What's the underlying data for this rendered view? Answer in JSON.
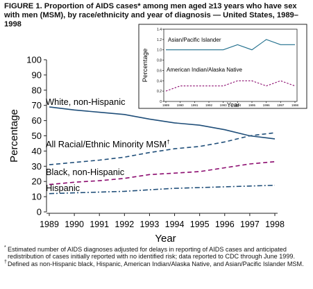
{
  "figure": {
    "title": "FIGURE 1. Proportion of AIDS cases* among men aged ≥13 years who have sex with men (MSM), by race/ethnicity and year of diagnosis — United States, 1989–1998"
  },
  "footnotes": [
    {
      "mark": "*",
      "text": "Estimated number of AIDS diagnoses adjusted for delays in reporting of AIDS cases and anticipated redistribution of cases initially reported with no identified risk; data reported to CDC through June 1999."
    },
    {
      "mark": "†",
      "text": "Defined as non-Hispanic black, Hispanic, American Indian/Alaska Native, and Asian/Pacific Islander MSM."
    }
  ],
  "chart_data": [
    {
      "type": "line",
      "title": "",
      "xlabel": "Year",
      "ylabel": "Percentage",
      "x": [
        1989,
        1990,
        1991,
        1992,
        1993,
        1994,
        1995,
        1996,
        1997,
        1998
      ],
      "xticks": [
        "1989",
        "1990",
        "1991",
        "1992",
        "1993",
        "1994",
        "1995",
        "1996",
        "1997",
        "1998"
      ],
      "ylim": [
        0,
        100
      ],
      "yticks": [
        "0",
        "10",
        "20",
        "30",
        "40",
        "50",
        "60",
        "70",
        "80",
        "90",
        "100"
      ],
      "grid": false,
      "series": [
        {
          "name": "White, non-Hispanic",
          "label": "White, non-Hispanic",
          "color": "#1f4e79",
          "style": "solid",
          "values": [
            69,
            67,
            65.5,
            64,
            61,
            58.5,
            57,
            54,
            50,
            48
          ]
        },
        {
          "name": "All Racial/Ethnic Minority MSM",
          "label": "All Racial/Ethnic Minority MSM",
          "label_mark": "†",
          "color": "#1f4e79",
          "style": "dashed",
          "values": [
            31,
            32.5,
            34,
            36,
            39,
            41.5,
            43,
            46,
            50,
            52
          ]
        },
        {
          "name": "Black, non-Hispanic",
          "label": "Black, non-Hispanic",
          "color": "#8b0a6e",
          "style": "dashed",
          "values": [
            18,
            19.5,
            20.5,
            22,
            24.5,
            25.5,
            26.5,
            29,
            31.5,
            33
          ]
        },
        {
          "name": "Hispanic",
          "label": "Hispanic",
          "color": "#1f4e79",
          "style": "dashdot",
          "values": [
            12,
            12.5,
            13,
            13.5,
            14.5,
            15.5,
            16,
            16.5,
            17,
            17.5
          ]
        }
      ]
    },
    {
      "type": "line",
      "title": "",
      "xlabel": "Year",
      "ylabel": "Percentage",
      "x": [
        1989,
        1990,
        1991,
        1992,
        1993,
        1994,
        1995,
        1996,
        1997,
        1998
      ],
      "xticks": [
        "1989",
        "1990",
        "1991",
        "1992",
        "1993",
        "1994",
        "1995",
        "1996",
        "1997",
        "1998"
      ],
      "ylim": [
        0,
        1.4
      ],
      "yticks": [
        "0",
        "0.2",
        "0.4",
        "0.6",
        "0.8",
        "1.0",
        "1.2",
        "1.4"
      ],
      "grid": false,
      "series": [
        {
          "name": "Asian/Pacific Islander",
          "label": "Asian/Pacific Islander",
          "color": "#1f6e8c",
          "style": "solid",
          "values": [
            1.0,
            1.0,
            1.0,
            1.0,
            1.0,
            1.1,
            1.0,
            1.2,
            1.1,
            1.1
          ]
        },
        {
          "name": "American Indian/Alaska Native",
          "label": "American Indian/Alaska Native",
          "color": "#8b0a6e",
          "style": "dashed",
          "values": [
            0.2,
            0.3,
            0.3,
            0.3,
            0.3,
            0.4,
            0.4,
            0.3,
            0.4,
            0.3
          ]
        }
      ]
    }
  ]
}
